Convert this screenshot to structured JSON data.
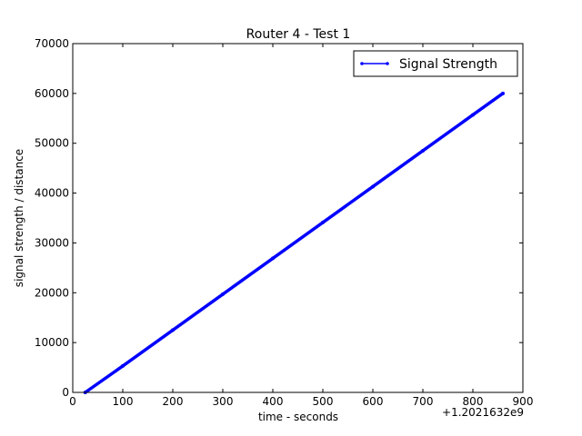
{
  "chart_data": {
    "type": "line",
    "title": "Router 4 - Test 1",
    "xlabel": "time - seconds",
    "ylabel": "signal strength / distance",
    "x_offset_label": "+1.2021632e9",
    "xlim": [
      0,
      900
    ],
    "ylim": [
      0,
      70000
    ],
    "xticks": [
      0,
      100,
      200,
      300,
      400,
      500,
      600,
      700,
      800,
      900
    ],
    "yticks": [
      0,
      10000,
      20000,
      30000,
      40000,
      50000,
      60000,
      70000
    ],
    "grid": false,
    "legend_position": "top-right",
    "series": [
      {
        "name": "Signal Strength",
        "color": "#0000ff",
        "marker": "dot",
        "x": [
          25,
          100,
          200,
          300,
          400,
          500,
          600,
          700,
          800,
          860
        ],
        "y": [
          0,
          5300,
          12500,
          19700,
          26900,
          34100,
          41300,
          48500,
          55700,
          60000
        ]
      }
    ]
  }
}
